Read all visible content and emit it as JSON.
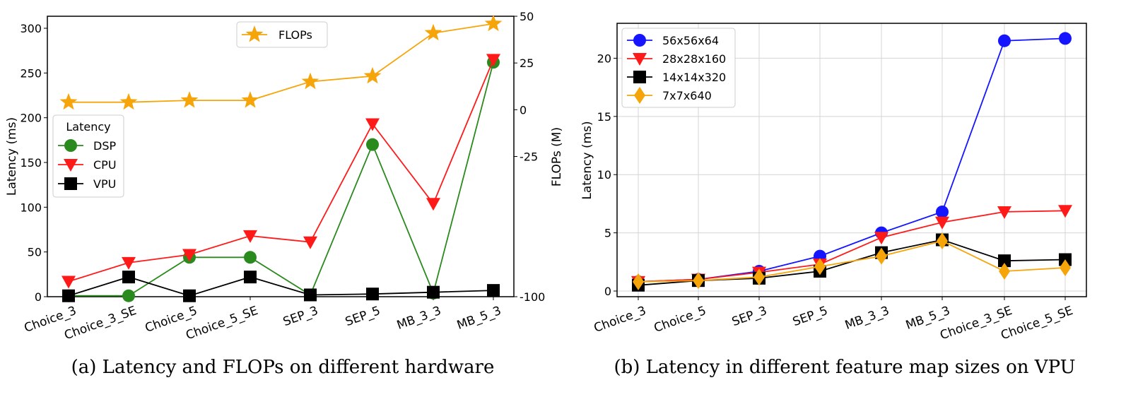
{
  "chart_data": [
    {
      "type": "line",
      "caption": "(a) Latency and FLOPs on different hardware",
      "categories": [
        "Choice_3",
        "Choice_3_SE",
        "Choice_5",
        "Choice_5_SE",
        "SEP_3",
        "SEP_5",
        "MB_3_3",
        "MB_5_3"
      ],
      "ylabel": "Latency (ms)",
      "ylim": [
        0,
        300
      ],
      "yticks": [
        "0",
        "50",
        "100",
        "150",
        "200",
        "250",
        "300"
      ],
      "y2label": "FLOPs (M)",
      "y2lim": [
        -100,
        50
      ],
      "y2ticks": [
        "-100",
        "-25",
        "0",
        "25",
        "50"
      ],
      "grid": false,
      "legend_title": "Latency",
      "series": [
        {
          "name": "DSP",
          "axis": "left",
          "color": "#2a8a1e",
          "marker": "circle",
          "values": [
            1,
            1,
            44,
            44,
            2,
            170,
            4,
            262
          ]
        },
        {
          "name": "CPU",
          "axis": "left",
          "color": "#ff1a1a",
          "marker": "triangle-down",
          "values": [
            17,
            38,
            47,
            68,
            61,
            193,
            104,
            265
          ]
        },
        {
          "name": "VPU",
          "axis": "left",
          "color": "#000000",
          "marker": "square",
          "values": [
            1,
            22,
            1,
            22,
            2,
            3,
            5,
            7
          ]
        },
        {
          "name": "FLOPs",
          "axis": "right",
          "color": "#f5a50a",
          "marker": "star",
          "values": [
            4,
            4,
            5,
            5,
            15,
            18,
            41,
            46
          ]
        }
      ]
    },
    {
      "type": "line",
      "caption": "(b) Latency in different feature map sizes on VPU",
      "categories": [
        "Choice_3",
        "Choice_5",
        "SEP_3",
        "SEP_5",
        "MB_3_3",
        "MB_5_3",
        "Choice_3_SE",
        "Choice_5_SE"
      ],
      "ylabel": "Latency (ms)",
      "ylim": [
        0,
        23
      ],
      "yticks": [
        "0",
        "5",
        "10",
        "15",
        "20"
      ],
      "grid": true,
      "series": [
        {
          "name": "56x56x64",
          "color": "#1515ff",
          "marker": "circle",
          "values": [
            0.8,
            1.0,
            1.7,
            3.0,
            5.0,
            6.8,
            21.5,
            21.7
          ]
        },
        {
          "name": "28x28x160",
          "color": "#ff1a1a",
          "marker": "triangle-down",
          "values": [
            0.8,
            1.0,
            1.6,
            2.3,
            4.6,
            5.9,
            6.8,
            6.9
          ]
        },
        {
          "name": "14x14x320",
          "color": "#000000",
          "marker": "square",
          "values": [
            0.5,
            0.9,
            1.1,
            1.7,
            3.3,
            4.4,
            2.6,
            2.7
          ]
        },
        {
          "name": "7x7x640",
          "color": "#f5a50a",
          "marker": "diamond",
          "values": [
            0.8,
            0.9,
            1.2,
            2.1,
            3.0,
            4.3,
            1.7,
            2.0
          ]
        }
      ]
    }
  ]
}
